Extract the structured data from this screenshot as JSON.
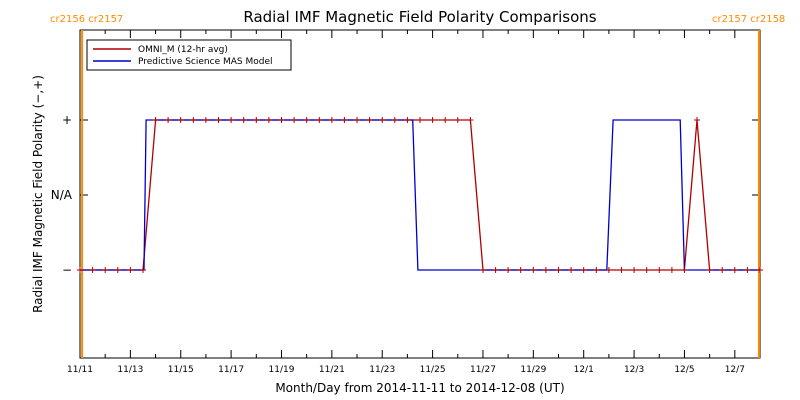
{
  "chart_data": {
    "type": "line",
    "title": "Radial IMF Magnetic Field Polarity Comparisons",
    "xlabel": "Month/Day from 2014-11-11 to 2014-12-08 (UT)",
    "ylabel": "Radial IMF Magnetic Field Polarity (−,+)",
    "x_range": [
      "2014-11-11",
      "2014-12-08"
    ],
    "x_tick_labels": [
      "11/11",
      "11/13",
      "11/15",
      "11/17",
      "11/19",
      "11/21",
      "11/23",
      "11/25",
      "11/27",
      "11/29",
      "12/1",
      "12/3",
      "12/5",
      "12/7"
    ],
    "y_tick_labels": [
      "+",
      "N/A",
      "−"
    ],
    "legend_position": "top-left",
    "carrington_labels": {
      "left": "cr2156 cr2157",
      "right": "cr2157 cr2158"
    },
    "carrington_markers": [
      "2014-11-11T02:00",
      "2014-12-07T23:00"
    ],
    "colors": {
      "omni": "#b00000",
      "model": "#0000cc",
      "carrington": "#ff8c00"
    },
    "series": [
      {
        "name": "OMNI_M (12-hr avg)",
        "marker": "+",
        "points": [
          [
            "2014-11-11T00:00",
            "−"
          ],
          [
            "2014-11-13T12:00",
            "−"
          ],
          [
            "2014-11-14T00:00",
            "+"
          ],
          [
            "2014-11-26T12:00",
            "+"
          ],
          [
            "2014-11-27T00:00",
            "−"
          ],
          [
            "2014-12-05T00:00",
            "−"
          ],
          [
            "2014-12-05T12:00",
            "+"
          ],
          [
            "2014-12-06T00:00",
            "−"
          ],
          [
            "2014-12-08T00:00",
            "−"
          ]
        ]
      },
      {
        "name": "Predictive Science MAS Model",
        "marker": "none",
        "points": [
          [
            "2014-11-11T00:00",
            "−"
          ],
          [
            "2014-11-13T13:00",
            "−"
          ],
          [
            "2014-11-13T15:00",
            "+"
          ],
          [
            "2014-11-24T05:00",
            "+"
          ],
          [
            "2014-11-24T10:00",
            "−"
          ],
          [
            "2014-12-01T22:00",
            "−"
          ],
          [
            "2014-12-02T04:00",
            "+"
          ],
          [
            "2014-12-04T20:00",
            "+"
          ],
          [
            "2014-12-05T00:00",
            "−"
          ],
          [
            "2014-12-08T00:00",
            "−"
          ]
        ]
      }
    ]
  }
}
